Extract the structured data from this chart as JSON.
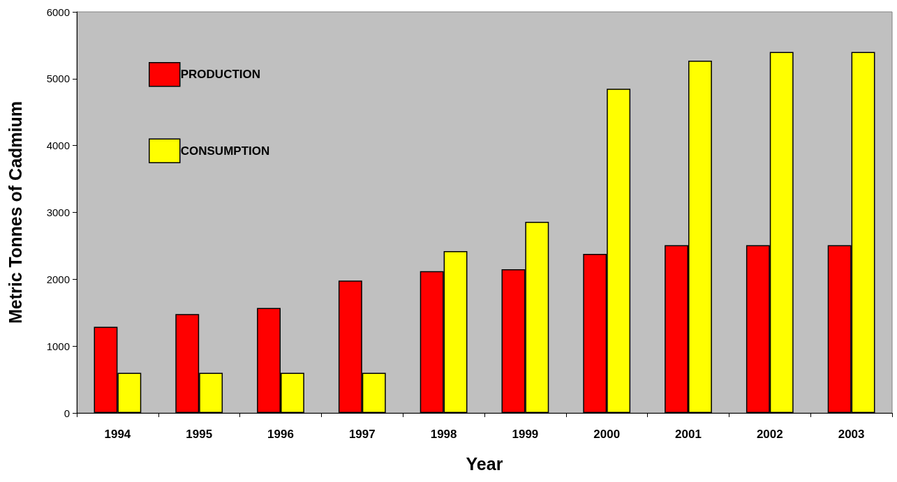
{
  "chart_data": {
    "type": "bar",
    "xlabel": "Year",
    "ylabel": "Metric Tonnes of Cadmium",
    "categories": [
      "1994",
      "1995",
      "1996",
      "1997",
      "1998",
      "1999",
      "2000",
      "2001",
      "2002",
      "2003"
    ],
    "series": [
      {
        "name": "PRODUCTION",
        "color": "#ff0000",
        "values": [
          1290,
          1480,
          1570,
          1980,
          2120,
          2150,
          2380,
          2510,
          2510,
          2510
        ]
      },
      {
        "name": "CONSUMPTION",
        "color": "#ffff00",
        "values": [
          600,
          600,
          600,
          600,
          2420,
          2860,
          4850,
          5270,
          5400,
          5400
        ]
      }
    ],
    "ylim": [
      0,
      6000
    ],
    "yticks": [
      0,
      1000,
      2000,
      3000,
      4000,
      5000,
      6000
    ],
    "grid": false,
    "legend": "top left"
  }
}
